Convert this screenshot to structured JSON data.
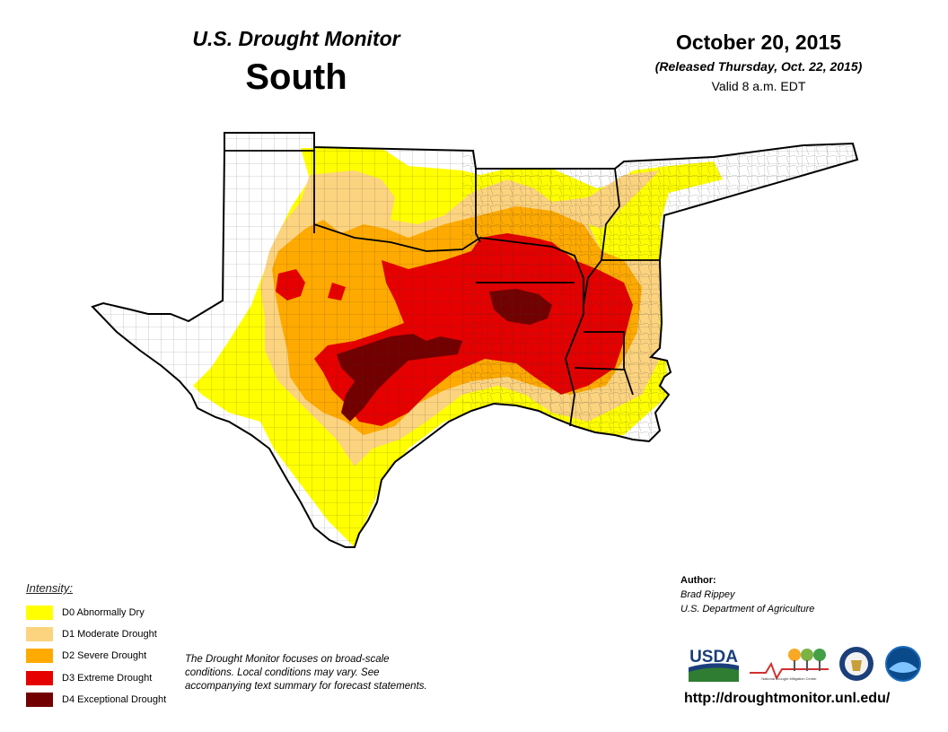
{
  "header": {
    "title": "U.S. Drought Monitor",
    "region": "South",
    "date": "October 20, 2015",
    "released": "(Released Thursday, Oct. 22, 2015)",
    "valid": "Valid 8 a.m. EDT"
  },
  "legend": {
    "title": "Intensity:",
    "items": [
      {
        "label": "D0 Abnormally Dry",
        "color": "#ffff00"
      },
      {
        "label": "D1 Moderate Drought",
        "color": "#fcd37f"
      },
      {
        "label": "D2 Severe Drought",
        "color": "#ffaa00"
      },
      {
        "label": "D3 Extreme Drought",
        "color": "#e60000"
      },
      {
        "label": "D4 Exceptional Drought",
        "color": "#730000"
      }
    ]
  },
  "note": "The Drought Monitor focuses on broad-scale conditions. Local conditions may vary. See accompanying text summary for forecast statements.",
  "author": {
    "heading": "Author:",
    "name": "Brad Rippey",
    "organization": "U.S. Department of Agriculture"
  },
  "logos": {
    "usda": "USDA",
    "ndmc": "National Drought Mitigation Center"
  },
  "url": "http://droughtmonitor.unl.edu/"
}
